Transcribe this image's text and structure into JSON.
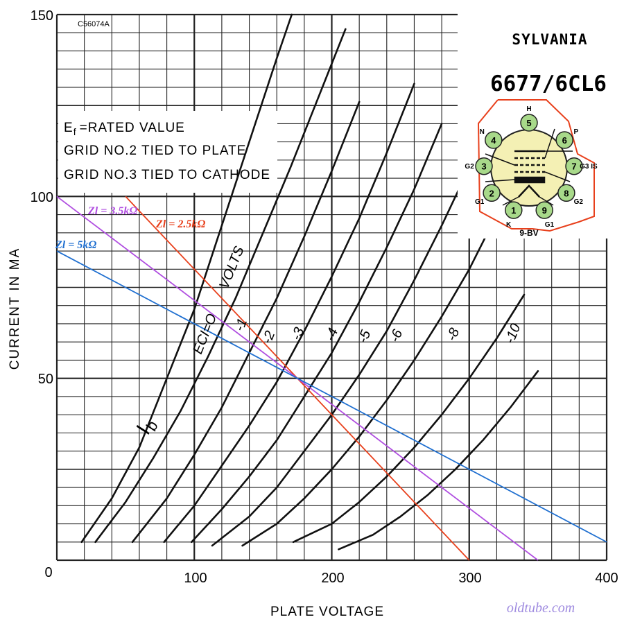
{
  "chart_data": {
    "type": "line",
    "title": "",
    "code": "C56074A",
    "xlabel": "PLATE VOLTAGE",
    "ylabel": "CURRENT IN MA",
    "xlim": [
      0,
      400
    ],
    "ylim": [
      0,
      150
    ],
    "xticks": [
      "0",
      "100",
      "200",
      "300",
      "400"
    ],
    "yticks": [
      "50",
      "100",
      "150"
    ],
    "grid": true,
    "notes": [
      "RATED VALUE",
      "GRID NO.2 TIED TO PLATE",
      "GRID NO.3 TIED TO CATHODE"
    ],
    "note_ef_label": "E",
    "note_ef_sub": "f",
    "note_ef_eq": "=",
    "ib_label": "I",
    "ib_sub": "b",
    "series_units_label": "VOLTS",
    "series": [
      {
        "name": "Ec1=0",
        "label": "ECI=O",
        "x": [
          18,
          40,
          60,
          80,
          100,
          120,
          140,
          160,
          180
        ],
        "y": [
          5,
          17,
          31,
          50,
          69,
          92,
          115,
          138,
          160
        ]
      },
      {
        "name": "-1",
        "label": "-1",
        "x": [
          28,
          50,
          70,
          90,
          110,
          130,
          150,
          170,
          190,
          210
        ],
        "y": [
          5,
          16,
          28,
          41,
          56,
          72,
          90,
          108,
          127,
          146
        ]
      },
      {
        "name": "-2",
        "label": "-2",
        "x": [
          55,
          80,
          100,
          120,
          140,
          160,
          180,
          200,
          220
        ],
        "y": [
          5,
          17,
          29,
          42,
          57,
          72,
          89,
          107,
          126
        ]
      },
      {
        "name": "-3",
        "label": "-3",
        "x": [
          78,
          100,
          120,
          140,
          160,
          180,
          200,
          220,
          240,
          260
        ],
        "y": [
          5,
          15,
          26,
          37,
          49,
          63,
          78,
          94,
          112,
          131
        ]
      },
      {
        "name": "-4",
        "label": "-4",
        "x": [
          98,
          120,
          140,
          160,
          180,
          200,
          220,
          240,
          260,
          280
        ],
        "y": [
          5,
          14,
          23,
          33,
          45,
          57,
          71,
          86,
          102,
          120
        ]
      },
      {
        "name": "-5",
        "label": "-5",
        "x": [
          113,
          140,
          160,
          180,
          200,
          220,
          240,
          260,
          280,
          300
        ],
        "y": [
          4,
          12,
          20,
          30,
          40,
          51,
          63,
          77,
          92,
          108
        ]
      },
      {
        "name": "-6",
        "label": "-6",
        "x": [
          135,
          160,
          180,
          200,
          220,
          240,
          260,
          280,
          300,
          320
        ],
        "y": [
          4,
          10,
          17,
          25,
          34,
          44,
          55,
          67,
          80,
          95
        ]
      },
      {
        "name": "-8",
        "label": "-8",
        "x": [
          172,
          200,
          220,
          240,
          260,
          280,
          300,
          320,
          340
        ],
        "y": [
          5,
          10,
          16,
          23,
          31,
          40,
          50,
          61,
          73
        ]
      },
      {
        "name": "-10",
        "label": "-10",
        "x": [
          205,
          230,
          250,
          270,
          290,
          310,
          330,
          350
        ],
        "y": [
          3,
          7,
          12,
          18,
          25,
          33,
          42,
          52
        ]
      }
    ],
    "load_lines": [
      {
        "name": "Zl = 2.5kΩ",
        "color": "#e8401c",
        "x": [
          50,
          300
        ],
        "y": [
          100,
          0
        ]
      },
      {
        "name": "Zl = 3.5kΩ",
        "color": "#b04ee0",
        "x": [
          0,
          350
        ],
        "y": [
          100,
          0
        ]
      },
      {
        "name": "Zl = 5kΩ",
        "color": "#1f6fd0",
        "x": [
          0,
          400
        ],
        "y": [
          85,
          5
        ]
      }
    ]
  },
  "tube": {
    "brand": "SYLVANIA",
    "model": "6677/6CL6",
    "basing": "9-BV",
    "pins": [
      {
        "num": "1",
        "label": "K"
      },
      {
        "num": "2",
        "label": "G1"
      },
      {
        "num": "3",
        "label": "G2"
      },
      {
        "num": "4",
        "label": "N"
      },
      {
        "num": "5",
        "label": "H"
      },
      {
        "num": "6",
        "label": "P"
      },
      {
        "num": "7",
        "label": "G3 IS"
      },
      {
        "num": "8",
        "label": "G2"
      },
      {
        "num": "9",
        "label": "G1"
      }
    ]
  },
  "watermark": "oldtube.com",
  "colors": {
    "curve": "#111111",
    "grid": "#222222",
    "pin_fill": "#a8d98a",
    "envelope": "#f4f0b4",
    "box_outline": "#e8401c"
  }
}
